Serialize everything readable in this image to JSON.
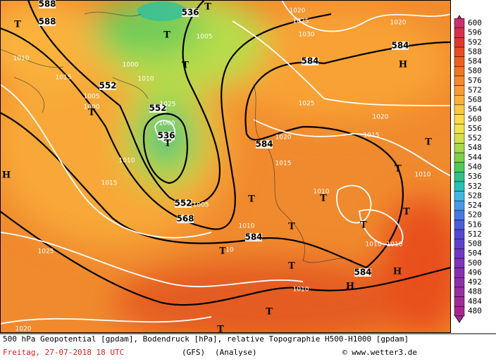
{
  "map": {
    "contour_labels": [
      "588",
      "588",
      "536",
      "536",
      "552",
      "552",
      "552",
      "568",
      "584",
      "584",
      "584",
      "584",
      "584"
    ],
    "pressure_labels": [
      "1020",
      "1025",
      "1030",
      "1020",
      "1010",
      "1015",
      "1005",
      "1000",
      "1000",
      "1010",
      "1005",
      "1025",
      "1000",
      "1025",
      "1020",
      "1015",
      "1020",
      "1015",
      "1010",
      "1015",
      "1010",
      "1010",
      "1005",
      "1010",
      "1010",
      "1010",
      "1025",
      "10",
      "1010",
      "1020"
    ],
    "symbols": [
      "T",
      "T",
      "T",
      "T",
      "T",
      "T",
      "T",
      "T",
      "T",
      "T",
      "T",
      "T",
      "T",
      "T",
      "T",
      "T",
      "T",
      "H",
      "H",
      "H",
      "H"
    ]
  },
  "colorbar": {
    "ticks": [
      600,
      596,
      592,
      588,
      584,
      580,
      576,
      572,
      568,
      564,
      560,
      556,
      552,
      548,
      544,
      540,
      536,
      532,
      528,
      524,
      520,
      516,
      512,
      508,
      504,
      500,
      496,
      492,
      488,
      484,
      480
    ],
    "colors": [
      "#c8306e",
      "#d8304a",
      "#e0382c",
      "#e84c22",
      "#ec6020",
      "#f07426",
      "#f4882c",
      "#f89c34",
      "#fab23c",
      "#fcc844",
      "#fcdc4c",
      "#f0e44c",
      "#d4e04c",
      "#a8d84c",
      "#7cd04c",
      "#50c858",
      "#30c088",
      "#28c0b8",
      "#40b8e0",
      "#4898e8",
      "#4878e0",
      "#4c5cd8",
      "#5448d0",
      "#6040c8",
      "#7038c0",
      "#7c34b8",
      "#8830b0",
      "#9030a8",
      "#9830a0",
      "#a02c98",
      "#a82890"
    ]
  },
  "footer": {
    "title": "500 hPa Geopotential [gpdam], Bodendruck [hPa], relative Topographie H500-H1000 [gpdam]",
    "date": "Freitag, 27-07-2018  18 UTC",
    "model": "(GFS)",
    "run": "(Analyse)",
    "credit": "© www.wetter3.de"
  }
}
